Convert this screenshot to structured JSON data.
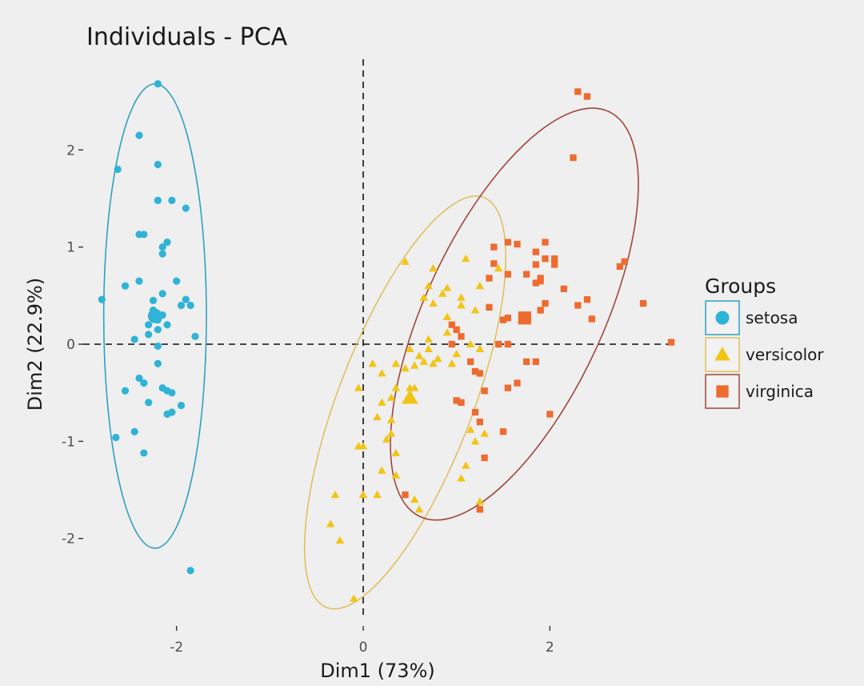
{
  "chart_data": {
    "type": "scatter",
    "title": "Individuals - PCA",
    "xlabel": "Dim1 (73%)",
    "ylabel": "Dim2 (22.9%)",
    "xlim": [
      -3.0,
      3.6
    ],
    "ylim": [
      -2.95,
      2.95
    ],
    "xticks": [
      -2,
      0,
      2
    ],
    "yticks": [
      -2,
      -1,
      0,
      1,
      2
    ],
    "xtick_labels": [
      "-2",
      "0",
      "2"
    ],
    "ytick_labels": [
      "-2",
      "-1",
      "0",
      "1",
      "2"
    ],
    "reference_lines": {
      "x": 0,
      "y": 0,
      "style": "dashed"
    },
    "legend": {
      "title": "Groups",
      "placement": "right"
    },
    "series": [
      {
        "name": "setosa",
        "shape": "circle",
        "color": "#2fb3d6",
        "ellipse_color": "#2fa0c0",
        "centroid": [
          -2.23,
          0.29
        ],
        "ellipse": {
          "cx": -2.23,
          "cy": 0.29,
          "rx": 0.55,
          "ry": 2.39,
          "angle": 0
        },
        "points": [
          [
            -2.2,
            2.68
          ],
          [
            -2.4,
            2.15
          ],
          [
            -2.63,
            1.8
          ],
          [
            -2.2,
            1.85
          ],
          [
            -2.2,
            1.48
          ],
          [
            -2.05,
            1.48
          ],
          [
            -1.9,
            1.4
          ],
          [
            -2.4,
            1.13
          ],
          [
            -2.35,
            1.13
          ],
          [
            -2.1,
            1.05
          ],
          [
            -2.15,
            1.0
          ],
          [
            -2.15,
            0.93
          ],
          [
            -2.55,
            0.6
          ],
          [
            -2.4,
            0.65
          ],
          [
            -2.0,
            0.65
          ],
          [
            -2.8,
            0.46
          ],
          [
            -2.25,
            0.45
          ],
          [
            -2.15,
            0.52
          ],
          [
            -2.25,
            0.35
          ],
          [
            -2.2,
            0.25
          ],
          [
            -2.15,
            0.3
          ],
          [
            -2.3,
            0.2
          ],
          [
            -2.1,
            0.2
          ],
          [
            -1.9,
            0.46
          ],
          [
            -1.85,
            0.4
          ],
          [
            -1.95,
            0.4
          ],
          [
            -2.2,
            0.15
          ],
          [
            -2.3,
            0.1
          ],
          [
            -2.45,
            0.05
          ],
          [
            -2.2,
            -0.02
          ],
          [
            -1.8,
            0.08
          ],
          [
            -2.2,
            -0.2
          ],
          [
            -2.4,
            -0.35
          ],
          [
            -2.35,
            -0.4
          ],
          [
            -2.55,
            -0.48
          ],
          [
            -2.15,
            -0.45
          ],
          [
            -2.1,
            -0.48
          ],
          [
            -2.05,
            -0.5
          ],
          [
            -2.3,
            -0.6
          ],
          [
            -1.95,
            -0.63
          ],
          [
            -2.05,
            -0.7
          ],
          [
            -2.1,
            -0.72
          ],
          [
            -2.45,
            -0.9
          ],
          [
            -2.65,
            -0.96
          ],
          [
            -2.35,
            -1.12
          ],
          [
            -1.85,
            -2.33
          ]
        ]
      },
      {
        "name": "versicolor",
        "shape": "triangle",
        "color": "#f2c416",
        "ellipse_color": "#e0c060",
        "centroid": [
          0.5,
          -0.55
        ],
        "ellipse": {
          "cx": 0.45,
          "cy": -0.6,
          "rx": 0.72,
          "ry": 2.26,
          "angle": 21
        },
        "points": [
          [
            0.45,
            0.85
          ],
          [
            0.75,
            0.78
          ],
          [
            1.1,
            0.88
          ],
          [
            1.45,
            0.78
          ],
          [
            0.7,
            0.6
          ],
          [
            0.9,
            0.58
          ],
          [
            1.25,
            0.6
          ],
          [
            0.65,
            0.48
          ],
          [
            0.85,
            0.52
          ],
          [
            1.05,
            0.48
          ],
          [
            0.75,
            0.42
          ],
          [
            1.05,
            0.4
          ],
          [
            1.2,
            0.35
          ],
          [
            0.9,
            0.28
          ],
          [
            0.9,
            0.12
          ],
          [
            0.7,
            0.05
          ],
          [
            1.15,
            0.0
          ],
          [
            0.5,
            -0.05
          ],
          [
            0.7,
            -0.05
          ],
          [
            1.25,
            -0.05
          ],
          [
            0.6,
            -0.12
          ],
          [
            0.65,
            -0.18
          ],
          [
            0.75,
            -0.2
          ],
          [
            0.8,
            -0.15
          ],
          [
            1.0,
            -0.1
          ],
          [
            0.1,
            -0.2
          ],
          [
            0.35,
            -0.2
          ],
          [
            0.45,
            -0.25
          ],
          [
            0.55,
            -0.22
          ],
          [
            0.2,
            -0.3
          ],
          [
            0.5,
            -0.45
          ],
          [
            0.3,
            -0.55
          ],
          [
            0.35,
            -0.45
          ],
          [
            0.55,
            -0.45
          ],
          [
            0.2,
            -0.6
          ],
          [
            0.15,
            -0.75
          ],
          [
            0.3,
            -0.78
          ],
          [
            0.3,
            -0.92
          ],
          [
            0.25,
            -0.98
          ],
          [
            0.0,
            -1.05
          ],
          [
            -0.05,
            -1.05
          ],
          [
            0.2,
            -1.3
          ],
          [
            0.35,
            -1.35
          ],
          [
            0.0,
            -1.55
          ],
          [
            0.15,
            -1.55
          ],
          [
            0.55,
            -1.6
          ],
          [
            0.6,
            -1.7
          ],
          [
            1.05,
            -1.38
          ],
          [
            1.1,
            -1.25
          ],
          [
            1.25,
            -1.62
          ],
          [
            1.15,
            -0.88
          ],
          [
            1.3,
            -0.92
          ],
          [
            1.2,
            -1.0
          ],
          [
            -0.3,
            -1.55
          ],
          [
            -0.35,
            -1.85
          ],
          [
            -0.25,
            -2.02
          ],
          [
            -0.1,
            -2.62
          ],
          [
            -0.05,
            -0.45
          ],
          [
            0.35,
            -1.12
          ],
          [
            0.95,
            -0.2
          ]
        ]
      },
      {
        "name": "virginica",
        "shape": "square",
        "color": "#ee6b2f",
        "ellipse_color": "#a0463c",
        "centroid": [
          1.73,
          0.27
        ],
        "ellipse": {
          "cx": 1.62,
          "cy": 0.31,
          "rx": 0.95,
          "ry": 2.3,
          "angle": 25
        },
        "points": [
          [
            2.3,
            2.6
          ],
          [
            2.4,
            2.55
          ],
          [
            2.25,
            1.92
          ],
          [
            1.55,
            1.05
          ],
          [
            1.65,
            1.03
          ],
          [
            1.95,
            1.05
          ],
          [
            1.4,
            1.0
          ],
          [
            1.85,
            0.95
          ],
          [
            1.95,
            0.88
          ],
          [
            2.05,
            0.88
          ],
          [
            1.85,
            0.82
          ],
          [
            1.4,
            0.83
          ],
          [
            2.05,
            0.82
          ],
          [
            2.8,
            0.85
          ],
          [
            2.75,
            0.8
          ],
          [
            1.55,
            0.72
          ],
          [
            1.75,
            0.72
          ],
          [
            1.35,
            0.68
          ],
          [
            1.9,
            0.68
          ],
          [
            1.9,
            0.65
          ],
          [
            1.85,
            0.63
          ],
          [
            2.15,
            0.57
          ],
          [
            2.4,
            0.46
          ],
          [
            3.0,
            0.42
          ],
          [
            1.95,
            0.42
          ],
          [
            2.3,
            0.4
          ],
          [
            1.35,
            0.38
          ],
          [
            1.9,
            0.35
          ],
          [
            2.45,
            0.26
          ],
          [
            1.5,
            0.25
          ],
          [
            1.55,
            0.27
          ],
          [
            1.72,
            0.27
          ],
          [
            1.0,
            0.15
          ],
          [
            1.05,
            0.08
          ],
          [
            1.45,
            0.0
          ],
          [
            1.55,
            0.0
          ],
          [
            1.75,
            -0.18
          ],
          [
            1.85,
            -0.18
          ],
          [
            1.15,
            -0.18
          ],
          [
            1.2,
            -0.28
          ],
          [
            1.25,
            -0.3
          ],
          [
            3.3,
            0.02
          ],
          [
            1.65,
            -0.4
          ],
          [
            1.55,
            -0.45
          ],
          [
            1.3,
            -0.48
          ],
          [
            1.0,
            -0.58
          ],
          [
            1.05,
            -0.6
          ],
          [
            1.2,
            -0.7
          ],
          [
            1.25,
            -0.8
          ],
          [
            1.5,
            -0.9
          ],
          [
            2.0,
            -0.72
          ],
          [
            1.3,
            -1.17
          ],
          [
            0.45,
            -1.55
          ],
          [
            1.25,
            -1.7
          ],
          [
            0.95,
            0.0
          ],
          [
            0.95,
            0.2
          ]
        ]
      }
    ]
  }
}
